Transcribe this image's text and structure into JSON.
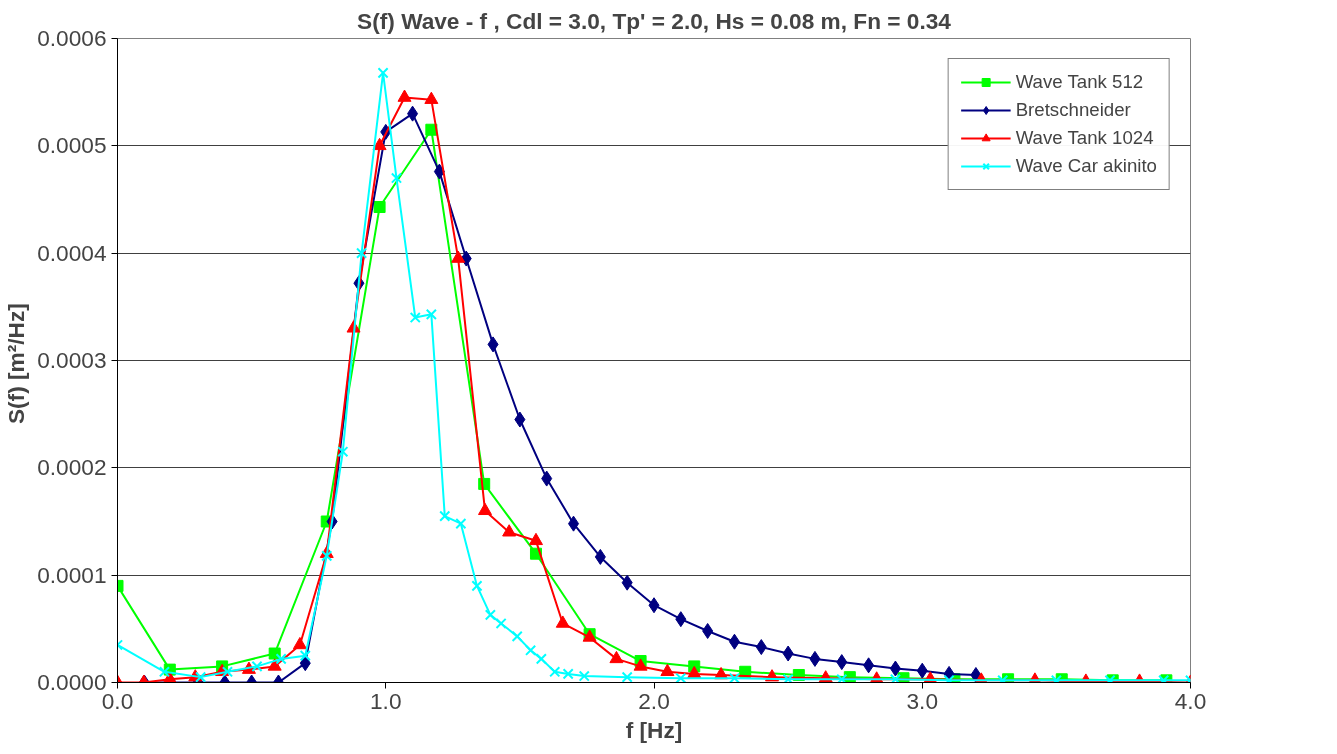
{
  "chart_data": {
    "type": "line",
    "title": "S(f) Wave - f , Cdl = 3.0, Tp' = 2.0, Hs = 0.08 m, Fn = 0.34",
    "xlabel": "f [Hz]",
    "ylabel": "S(f)  [m²/Hz]",
    "xlim": [
      0,
      4
    ],
    "ylim": [
      0,
      0.0006
    ],
    "xticks": [
      {
        "value": 0,
        "label": "0.0"
      },
      {
        "value": 1,
        "label": "1.0"
      },
      {
        "value": 2,
        "label": "2.0"
      },
      {
        "value": 3,
        "label": "3.0"
      },
      {
        "value": 4,
        "label": "4.0"
      }
    ],
    "yticks": [
      {
        "value": 0,
        "label": "0.0000"
      },
      {
        "value": 0.0001,
        "label": "0.0001"
      },
      {
        "value": 0.0002,
        "label": "0.0002"
      },
      {
        "value": 0.0003,
        "label": "0.0003"
      },
      {
        "value": 0.0004,
        "label": "0.0004"
      },
      {
        "value": 0.0005,
        "label": "0.0005"
      },
      {
        "value": 0.0006,
        "label": "0.0006"
      }
    ],
    "grid": "y",
    "legend": "top right",
    "series": [
      {
        "name": "Wave Tank 512",
        "color": "#00ff00",
        "marker": "square",
        "x": [
          0,
          0.195,
          0.39,
          0.586,
          0.78,
          0.977,
          1.17,
          1.367,
          1.56,
          1.76,
          1.95,
          2.15,
          2.34,
          2.54,
          2.73,
          2.93,
          3.12,
          3.32,
          3.52,
          3.71,
          3.91
        ],
        "values": [
          9e-05,
          1.2e-05,
          1.5e-05,
          2.7e-05,
          0.00015,
          0.000443,
          0.000515,
          0.000185,
          0.00012,
          4.5e-05,
          2e-05,
          1.5e-05,
          1e-05,
          7e-06,
          5e-06,
          4e-06,
          3e-06,
          3e-06,
          3e-06,
          2e-06,
          2e-06
        ]
      },
      {
        "name": "Bretschneider",
        "color": "#000080",
        "marker": "diamond",
        "x": [
          0.1,
          0.2,
          0.3,
          0.4,
          0.5,
          0.6,
          0.7,
          0.8,
          0.9,
          1.0,
          1.1,
          1.2,
          1.3,
          1.4,
          1.5,
          1.6,
          1.7,
          1.8,
          1.9,
          2.0,
          2.1,
          2.2,
          2.3,
          2.4,
          2.5,
          2.6,
          2.7,
          2.8,
          2.9,
          3.0,
          3.1,
          3.2
        ],
        "values": [
          0,
          0,
          0,
          0,
          0,
          0,
          1.8e-05,
          0.00015,
          0.000372,
          0.000513,
          0.00053,
          0.000476,
          0.000395,
          0.000315,
          0.000245,
          0.00019,
          0.000148,
          0.000117,
          9.3e-05,
          7.2e-05,
          5.9e-05,
          4.8e-05,
          3.8e-05,
          3.3e-05,
          2.7e-05,
          2.2e-05,
          1.9e-05,
          1.6e-05,
          1.3e-05,
          1.1e-05,
          8e-06,
          7e-06
        ]
      },
      {
        "name": "Wave Tank 1024",
        "color": "#ff0000",
        "marker": "triangle",
        "x": [
          0,
          0.098,
          0.195,
          0.29,
          0.39,
          0.49,
          0.586,
          0.68,
          0.78,
          0.88,
          0.977,
          1.07,
          1.17,
          1.27,
          1.37,
          1.46,
          1.56,
          1.66,
          1.76,
          1.86,
          1.95,
          2.05,
          2.15,
          2.25,
          2.44,
          2.64,
          2.83,
          3.03,
          3.22,
          3.42,
          3.61,
          3.81,
          4.0
        ],
        "values": [
          0,
          0,
          3e-06,
          5e-06,
          1e-05,
          1.2e-05,
          1.5e-05,
          3.5e-05,
          0.00012,
          0.00033,
          0.0005,
          0.000545,
          0.000543,
          0.000395,
          0.00016,
          0.00014,
          0.000132,
          5.5e-05,
          4.2e-05,
          2.2e-05,
          1.5e-05,
          1e-05,
          8e-06,
          7e-06,
          5e-06,
          4e-06,
          3e-06,
          3e-06,
          2e-06,
          2e-06,
          1e-06,
          1e-06,
          0
        ]
      },
      {
        "name": "Wave Car akinito",
        "color": "#00ffff",
        "marker": "cross",
        "x": [
          0,
          0.175,
          0.31,
          0.41,
          0.52,
          0.61,
          0.7,
          0.78,
          0.84,
          0.91,
          0.99,
          1.04,
          1.11,
          1.17,
          1.22,
          1.28,
          1.34,
          1.39,
          1.43,
          1.49,
          1.54,
          1.58,
          1.63,
          1.68,
          1.74,
          1.9,
          2.1,
          2.3,
          2.5,
          2.7,
          2.9,
          3.1,
          3.3,
          3.5,
          3.7,
          3.9,
          4.0
        ],
        "values": [
          3.5e-05,
          1e-05,
          5e-06,
          1e-05,
          1.5e-05,
          2.2e-05,
          2.5e-05,
          0.000118,
          0.000215,
          0.0004,
          0.000568,
          0.00047,
          0.00034,
          0.000343,
          0.000155,
          0.000148,
          9e-05,
          6.3e-05,
          5.5e-05,
          4.3e-05,
          3e-05,
          2.2e-05,
          1e-05,
          8e-06,
          6e-06,
          5e-06,
          4e-06,
          4e-06,
          3e-06,
          3e-06,
          3e-06,
          2e-06,
          2e-06,
          2e-06,
          2e-06,
          2e-06,
          2e-06
        ]
      }
    ]
  }
}
